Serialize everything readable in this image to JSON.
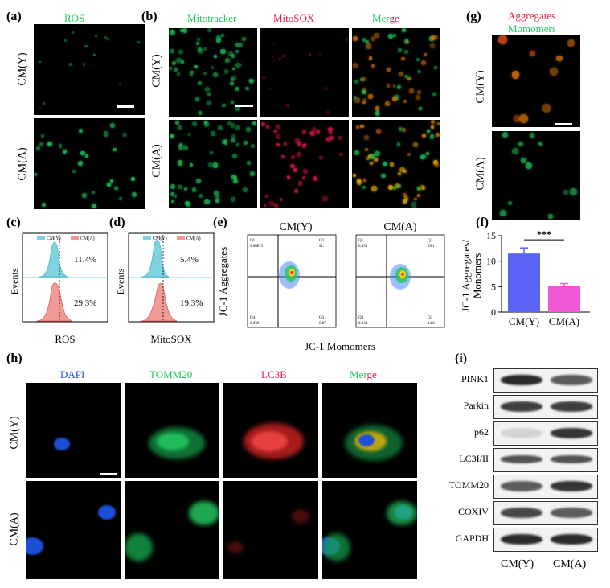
{
  "panels": {
    "a": {
      "label": "(a)",
      "title": "ROS",
      "rows": [
        "CM(Y)",
        "CM(A)"
      ]
    },
    "b": {
      "label": "(b)",
      "titles": [
        "Mitotracker",
        "MitoSOX",
        "Merge"
      ],
      "rows": [
        "CM(Y)",
        "CM(A)"
      ]
    },
    "c": {
      "label": "(c)",
      "legend": [
        "CM(Y)",
        "CM(A)"
      ],
      "pct_y": "11.4%",
      "pct_a": "29.3%",
      "ylabel": "Events",
      "xlabel": "ROS"
    },
    "d": {
      "label": "(d)",
      "legend": [
        "CM(Y)",
        "CM(A)"
      ],
      "pct_y": "5.4%",
      "pct_a": "19.3%",
      "ylabel": "Events",
      "xlabel": "MitoSOX"
    },
    "e": {
      "label": "(e)",
      "plot_titles": [
        "CM(Y)",
        "CM(A)"
      ],
      "ylabel": "JC-1 Aggregates",
      "xlabel": "JC-1 Momomers",
      "quads_y": {
        "q1": "Q1",
        "q1v": "9.60E-3",
        "q2": "Q2",
        "q2v": "91.1",
        "q3": "Q3",
        "q3v": "8.87",
        "q4": "Q4",
        "q4v": "0.030"
      },
      "quads_a": {
        "q1": "Q1",
        "q1v": "0.056",
        "q2": "Q2",
        "q2v": "85.1",
        "q3": "Q3",
        "q3v": "14.8",
        "q4": "Q4",
        "q4v": "0.034"
      }
    },
    "f": {
      "label": "(f)",
      "ylabel_1": "JC-1 Aggregates/",
      "ylabel_2": "Monomers",
      "sig": "***"
    },
    "g": {
      "label": "(g)",
      "title_red": "Aggregates",
      "title_green": "Momomers",
      "rows": [
        "CM(Y)",
        "CM(A)"
      ]
    },
    "h": {
      "label": "(h)",
      "titles": [
        "DAPI",
        "TOMM20",
        "LC3B",
        "Merge"
      ],
      "rows": [
        "CM(Y)",
        "CM(A)"
      ]
    },
    "i": {
      "label": "(i)",
      "proteins": [
        "PINK1",
        "Parkin",
        "p62",
        "LC3I/II",
        "TOMM20",
        "COXIV",
        "GAPDH"
      ],
      "lanes": [
        "CM(Y)",
        "CM(A)"
      ]
    }
  },
  "colors": {
    "green": "#22c55e",
    "red": "#e11d48",
    "blue": "#1d4ed8",
    "cyan": "#7dd3e0",
    "salmon": "#f29a96",
    "bar_y": "#5b63f5",
    "bar_a": "#f158d6"
  },
  "chart_data": [
    {
      "type": "bar",
      "categories": [
        "CM(Y)",
        "CM(A)"
      ],
      "values": [
        11.5,
        5.2
      ],
      "errors": [
        1.1,
        0.4
      ],
      "ylim": [
        0,
        15
      ],
      "yticks": [
        0,
        5,
        10,
        15
      ],
      "ylabel": "JC-1 Aggregates/ Monomers",
      "annotation": "***"
    }
  ]
}
